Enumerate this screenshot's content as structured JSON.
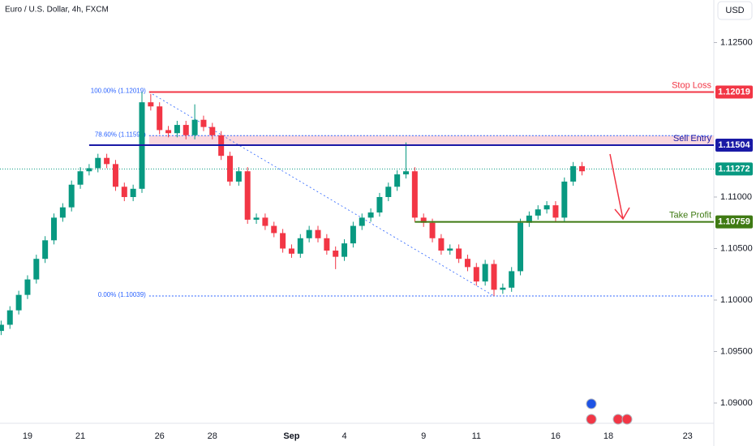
{
  "chart_data": {
    "type": "candlestick",
    "title": "Euro / U.S. Dollar, 4h, FXCM",
    "currency": "USD",
    "up_color": "#089981",
    "down_color": "#f23645",
    "ylim": [
      1.08819,
      1.12913
    ],
    "yticks": [
      {
        "value": 1.125,
        "label": "1.12500"
      },
      {
        "value": 1.11,
        "label": "1.11000"
      },
      {
        "value": 1.105,
        "label": "1.10500"
      },
      {
        "value": 1.1,
        "label": "1.10000"
      },
      {
        "value": 1.095,
        "label": "1.09500"
      },
      {
        "value": 1.09,
        "label": "1.09000"
      }
    ],
    "categories": [
      null,
      null,
      null,
      "19",
      null,
      null,
      null,
      null,
      null,
      "21",
      null,
      null,
      null,
      null,
      null,
      null,
      null,
      null,
      "26",
      null,
      null,
      null,
      null,
      null,
      "28",
      null,
      null,
      null,
      null,
      null,
      null,
      null,
      null,
      "Sep",
      null,
      null,
      null,
      null,
      null,
      "4",
      null,
      null,
      null,
      null,
      null,
      null,
      null,
      null,
      "9",
      null,
      null,
      null,
      null,
      null,
      "11",
      null,
      null,
      null,
      null,
      null,
      null,
      null,
      null,
      "16",
      null,
      null,
      null,
      null,
      null,
      "18",
      null,
      null,
      null,
      null,
      null,
      null,
      null,
      null,
      "23"
    ],
    "ohlc": [
      [
        1.097,
        1.098,
        1.0966,
        1.0976
      ],
      [
        1.0976,
        1.0994,
        1.0972,
        1.099
      ],
      [
        1.099,
        1.1009,
        1.0986,
        1.1005
      ],
      [
        1.1005,
        1.1024,
        1.1001,
        1.102
      ],
      [
        1.102,
        1.1044,
        1.1016,
        1.104
      ],
      [
        1.104,
        1.1062,
        1.1036,
        1.1058
      ],
      [
        1.1058,
        1.1084,
        1.1054,
        1.108
      ],
      [
        1.108,
        1.1094,
        1.1076,
        1.109
      ],
      [
        1.109,
        1.1116,
        1.1086,
        1.1112
      ],
      [
        1.1112,
        1.1129,
        1.1108,
        1.1125
      ],
      [
        1.1125,
        1.1132,
        1.1121,
        1.1128
      ],
      [
        1.1128,
        1.1142,
        1.1124,
        1.1138
      ],
      [
        1.1138,
        1.1142,
        1.1128,
        1.1132
      ],
      [
        1.1132,
        1.1136,
        1.1106,
        1.111
      ],
      [
        1.111,
        1.1114,
        1.1096,
        1.11
      ],
      [
        1.11,
        1.1112,
        1.1096,
        1.1108
      ],
      [
        1.1108,
        1.1202,
        1.1104,
        1.1192
      ],
      [
        1.1192,
        1.12,
        1.1184,
        1.1188
      ],
      [
        1.1188,
        1.1192,
        1.1161,
        1.1165
      ],
      [
        1.1165,
        1.1169,
        1.1158,
        1.1162
      ],
      [
        1.1162,
        1.1174,
        1.1158,
        1.117
      ],
      [
        1.117,
        1.1174,
        1.1156,
        1.116
      ],
      [
        1.116,
        1.119,
        1.1156,
        1.1175
      ],
      [
        1.1175,
        1.1179,
        1.1164,
        1.1168
      ],
      [
        1.1168,
        1.1172,
        1.1156,
        1.116
      ],
      [
        1.116,
        1.1164,
        1.1136,
        1.114
      ],
      [
        1.114,
        1.1144,
        1.1111,
        1.1115
      ],
      [
        1.1115,
        1.1129,
        1.1111,
        1.1125
      ],
      [
        1.1125,
        1.1129,
        1.1074,
        1.1078
      ],
      [
        1.1078,
        1.1084,
        1.1074,
        1.108
      ],
      [
        1.108,
        1.1084,
        1.1068,
        1.1072
      ],
      [
        1.1072,
        1.1076,
        1.1061,
        1.1065
      ],
      [
        1.1065,
        1.1069,
        1.1046,
        1.105
      ],
      [
        1.105,
        1.1054,
        1.1041,
        1.1045
      ],
      [
        1.1045,
        1.1064,
        1.1041,
        1.106
      ],
      [
        1.106,
        1.1072,
        1.1056,
        1.1068
      ],
      [
        1.1068,
        1.1072,
        1.1056,
        1.106
      ],
      [
        1.106,
        1.1064,
        1.1044,
        1.1048
      ],
      [
        1.1048,
        1.1052,
        1.103,
        1.1042
      ],
      [
        1.1042,
        1.1059,
        1.1038,
        1.1055
      ],
      [
        1.1055,
        1.1076,
        1.1051,
        1.1072
      ],
      [
        1.1072,
        1.1084,
        1.1068,
        1.108
      ],
      [
        1.108,
        1.1089,
        1.1076,
        1.1085
      ],
      [
        1.1085,
        1.1104,
        1.1081,
        1.11
      ],
      [
        1.11,
        1.1114,
        1.1096,
        1.111
      ],
      [
        1.111,
        1.1126,
        1.1106,
        1.1122
      ],
      [
        1.1122,
        1.1153,
        1.1118,
        1.1125
      ],
      [
        1.1125,
        1.1129,
        1.1076,
        1.108
      ],
      [
        1.108,
        1.1084,
        1.1071,
        1.1075
      ],
      [
        1.1075,
        1.1079,
        1.1056,
        1.106
      ],
      [
        1.106,
        1.1064,
        1.1044,
        1.1048
      ],
      [
        1.1048,
        1.1054,
        1.1044,
        1.105
      ],
      [
        1.105,
        1.1054,
        1.1036,
        1.104
      ],
      [
        1.104,
        1.1044,
        1.1028,
        1.1032
      ],
      [
        1.1032,
        1.1036,
        1.1014,
        1.1018
      ],
      [
        1.1018,
        1.1039,
        1.1014,
        1.1035
      ],
      [
        1.1035,
        1.1039,
        1.1004,
        1.101
      ],
      [
        1.101,
        1.1016,
        1.1006,
        1.1012
      ],
      [
        1.1012,
        1.1032,
        1.1008,
        1.1028
      ],
      [
        1.1028,
        1.1079,
        1.1024,
        1.1075
      ],
      [
        1.1075,
        1.1086,
        1.1071,
        1.1082
      ],
      [
        1.1082,
        1.1092,
        1.1078,
        1.1088
      ],
      [
        1.1088,
        1.1096,
        1.1084,
        1.1092
      ],
      [
        1.1092,
        1.1096,
        1.1076,
        1.108
      ],
      [
        1.108,
        1.1119,
        1.1076,
        1.1115
      ],
      [
        1.1115,
        1.1134,
        1.1111,
        1.113
      ],
      [
        1.113,
        1.1134,
        1.1121,
        1.1125
      ],
      null,
      null,
      null,
      null,
      null,
      null,
      null,
      null,
      null,
      null,
      null,
      null
    ],
    "levels": [
      {
        "name": "Stop Loss",
        "value": 1.12019,
        "color": "#f23645"
      },
      {
        "name": "Sell Entry",
        "value": 1.11504,
        "color": "#1a1aa6"
      },
      {
        "name": "Take Profit",
        "value": 1.10759,
        "color": "#3f7a13"
      }
    ],
    "last_price": {
      "value": 1.11272,
      "color": "#089981"
    },
    "fib": [
      {
        "value": 1.12019,
        "label": "100.00% (1.12019)"
      },
      {
        "value": 1.11596,
        "label": "78.60% (1.11596)"
      },
      {
        "value": 1.10039,
        "label": "0.00% (1.10039)"
      }
    ]
  }
}
